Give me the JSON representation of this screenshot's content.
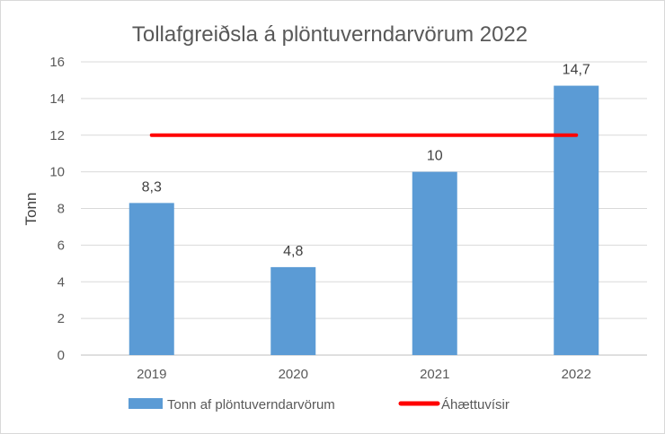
{
  "chart_data": {
    "type": "bar",
    "title": "Tollafgreiðsla á plöntuverndarvörum 2022",
    "xlabel": "",
    "ylabel": "Tonn",
    "categories": [
      "2019",
      "2020",
      "2021",
      "2022"
    ],
    "ylim": [
      0,
      16
    ],
    "yticks": [
      "0",
      "2",
      "4",
      "6",
      "8",
      "10",
      "12",
      "14",
      "16"
    ],
    "grid": true,
    "legend_position": "bottom",
    "series": [
      {
        "name": "Tonn af plöntuverndarvörum",
        "type": "bar",
        "values": [
          8.3,
          4.8,
          10,
          14.7
        ],
        "labels": [
          "8,3",
          "4,8",
          "10",
          "14,7"
        ],
        "color": "#5b9bd5"
      },
      {
        "name": "Áhættuvísir",
        "type": "line",
        "values": [
          12,
          12,
          12,
          12
        ],
        "color": "#ff0000"
      }
    ]
  }
}
